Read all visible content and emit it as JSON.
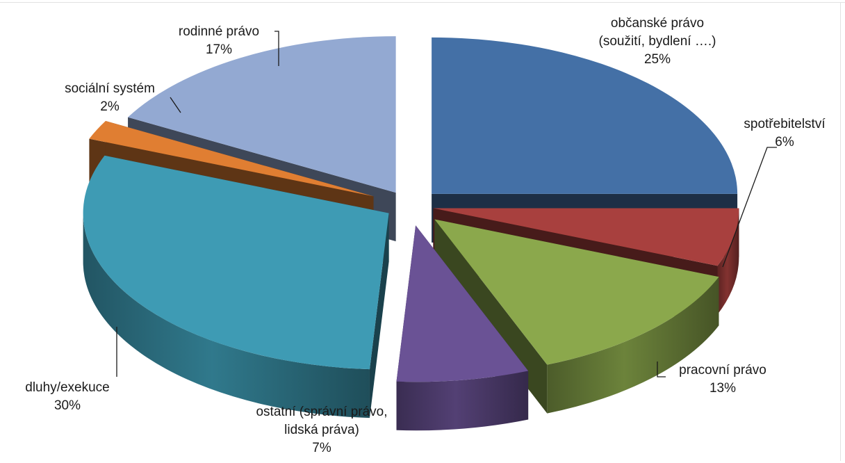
{
  "chart_data": {
    "type": "pie",
    "title": "",
    "exploded": true,
    "three_d": true,
    "slices": [
      {
        "label": "občanské právo (soužití, bydlení ….)",
        "label_lines": [
          "občanské právo",
          "(soužití, bydlení ….)"
        ],
        "value": 25,
        "value_label": "25%",
        "color": "#4470a6"
      },
      {
        "label": "spotřebitelství",
        "label_lines": [
          "spotřebitelství"
        ],
        "value": 6,
        "value_label": "6%",
        "color": "#a8403e"
      },
      {
        "label": "pracovní právo",
        "label_lines": [
          "pracovní právo"
        ],
        "value": 13,
        "value_label": "13%",
        "color": "#8ba84c"
      },
      {
        "label": "ostatní (správní právo, lidská práva)",
        "label_lines": [
          "ostatní (správní právo,",
          "lidská práva)"
        ],
        "value": 7,
        "value_label": "7%",
        "color": "#6a5295"
      },
      {
        "label": "dluhy/exekuce",
        "label_lines": [
          "dluhy/exekuce"
        ],
        "value": 30,
        "value_label": "30%",
        "color": "#3e9bb4"
      },
      {
        "label": "sociální systém",
        "label_lines": [
          "sociální systém"
        ],
        "value": 2,
        "value_label": "2%",
        "color": "#e07e32"
      },
      {
        "label": "rodinné právo",
        "label_lines": [
          "rodinné právo"
        ],
        "value": 17,
        "value_label": "17%",
        "color": "#93a9d2"
      }
    ]
  }
}
